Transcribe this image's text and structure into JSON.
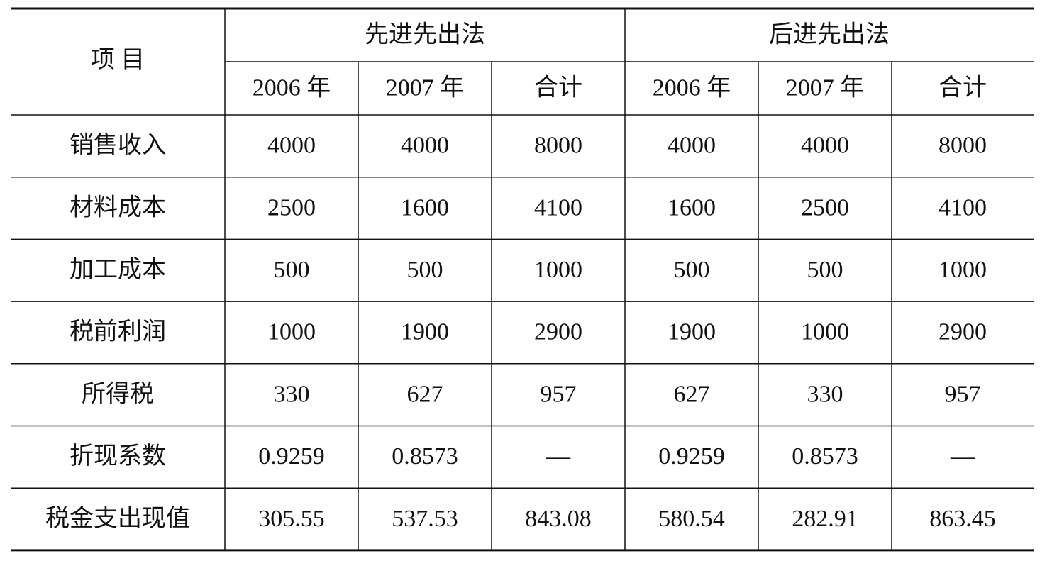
{
  "header": {
    "item": "项 目",
    "groups": [
      "先进先出法",
      "后进先出法"
    ],
    "subheaders": [
      [
        "2006 年",
        "2007 年",
        "合计"
      ],
      [
        "2006 年",
        "2007 年",
        "合计"
      ]
    ]
  },
  "table": {
    "rows": [
      [
        "销售收入",
        "4000",
        "4000",
        "8000",
        "4000",
        "4000",
        "8000"
      ],
      [
        "材料成本",
        "2500",
        "1600",
        "4100",
        "1600",
        "2500",
        "4100"
      ],
      [
        "加工成本",
        "500",
        "500",
        "1000",
        "500",
        "500",
        "1000"
      ],
      [
        "税前利润",
        "1000",
        "1900",
        "2900",
        "1900",
        "1000",
        "2900"
      ],
      [
        "所得税",
        "330",
        "627",
        "957",
        "627",
        "330",
        "957"
      ],
      [
        "折现系数",
        "0.9259",
        "0.8573",
        "—",
        "0.9259",
        "0.8573",
        "—"
      ],
      [
        "税金支出现值",
        "305.55",
        "537.53",
        "843.08",
        "580.54",
        "282.91",
        "863.45"
      ]
    ]
  }
}
